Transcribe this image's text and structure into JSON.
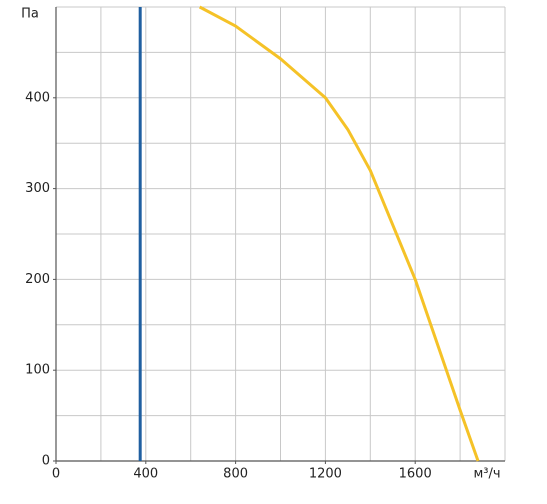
{
  "chart_data": {
    "type": "line",
    "x_label": "м³/ч",
    "y_label": "Па",
    "xlim": [
      0,
      2000
    ],
    "ylim": [
      0,
      500
    ],
    "xticks": [
      0,
      400,
      800,
      1200,
      1600
    ],
    "yticks": [
      0,
      100,
      200,
      300,
      400
    ],
    "xgrid": [
      200,
      400,
      600,
      800,
      1000,
      1200,
      1400,
      1600,
      1800,
      2000
    ],
    "ygrid": [
      50,
      100,
      150,
      200,
      250,
      300,
      350,
      400,
      450,
      500
    ],
    "grid": true,
    "series": [
      {
        "color": "#f5c227",
        "x": [
          640,
          800,
          1000,
          1200,
          1300,
          1400,
          1600,
          1800,
          1880
        ],
        "values": [
          500,
          479,
          443,
          400,
          365,
          320,
          200,
          56,
          0
        ]
      },
      {
        "color": "#1f5fa0",
        "x": [
          375,
          375
        ],
        "values": [
          0,
          500
        ]
      }
    ]
  }
}
